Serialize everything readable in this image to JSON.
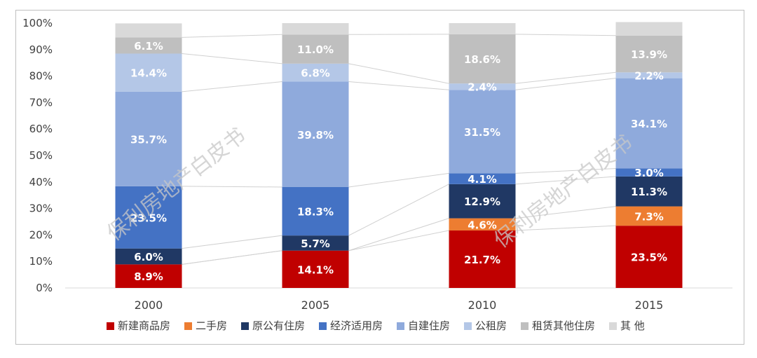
{
  "chart_data": {
    "type": "bar",
    "stacked": true,
    "percent_stacked": true,
    "categories": [
      "2000",
      "2005",
      "2010",
      "2015"
    ],
    "ylim": [
      0,
      100
    ],
    "yticks": [
      "0%",
      "10%",
      "20%",
      "30%",
      "40%",
      "50%",
      "60%",
      "70%",
      "80%",
      "90%",
      "100%"
    ],
    "series": [
      {
        "name": "新建商品房",
        "color": "#c00000",
        "values": [
          8.9,
          14.1,
          21.7,
          23.5
        ],
        "labels": [
          "8.9%",
          "14.1%",
          "21.7%",
          "23.5%"
        ]
      },
      {
        "name": "二手房",
        "color": "#ed7d31",
        "values": [
          0,
          0,
          4.6,
          7.3
        ],
        "labels": [
          "",
          "",
          "4.6%",
          "7.3%"
        ]
      },
      {
        "name": "原公有住房",
        "color": "#203864",
        "values": [
          6.0,
          5.7,
          12.9,
          11.3
        ],
        "labels": [
          "6.0%",
          "5.7%",
          "12.9%",
          "11.3%"
        ]
      },
      {
        "name": "经济适用房",
        "color": "#4472c4",
        "values": [
          23.5,
          18.3,
          4.1,
          3.0
        ],
        "labels": [
          "23.5%",
          "18.3%",
          "4.1%",
          "3.0%"
        ]
      },
      {
        "name": "自建住房",
        "color": "#8faadc",
        "values": [
          35.7,
          39.8,
          31.5,
          34.1
        ],
        "labels": [
          "35.7%",
          "39.8%",
          "31.5%",
          "34.1%"
        ]
      },
      {
        "name": "公租房",
        "color": "#b4c7e7",
        "values": [
          14.4,
          6.8,
          2.4,
          2.2
        ],
        "labels": [
          "14.4%",
          "6.8%",
          "2.4%",
          "2.2%"
        ]
      },
      {
        "name": "租赁其他住房",
        "color": "#bfbfbf",
        "values": [
          6.1,
          11.0,
          18.6,
          13.9
        ],
        "labels": [
          "6.1%",
          "11.0%",
          "18.6%",
          "13.9%"
        ]
      },
      {
        "name": "其 他",
        "color": "#d9d9d9",
        "values": [
          5.3,
          4.3,
          4.2,
          5.1
        ],
        "labels": [
          "",
          "",
          "",
          ""
        ]
      }
    ],
    "series_lines": true,
    "legend_position": "bottom",
    "grid": false
  },
  "watermarks": [
    "保利房地产白皮书",
    "保利房地产白皮书"
  ]
}
